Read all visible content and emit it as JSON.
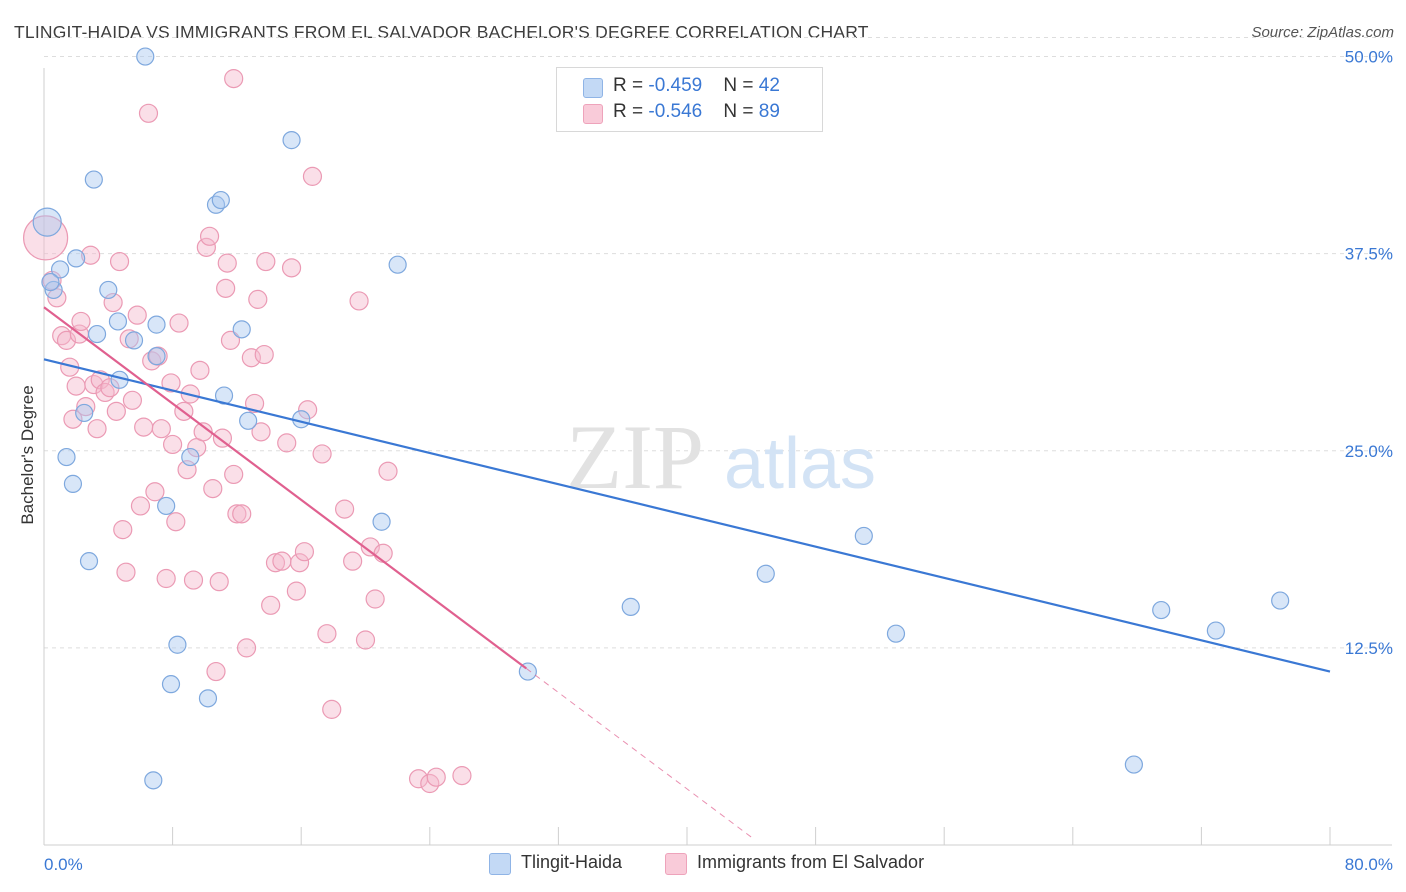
{
  "title": "TLINGIT-HAIDA VS IMMIGRANTS FROM EL SALVADOR BACHELOR'S DEGREE CORRELATION CHART",
  "source": "Source: ZipAtlas.com",
  "watermark": {
    "zip": "ZIP",
    "atlas": "atlas"
  },
  "legend": {
    "rows": [
      {
        "r_label": "R = ",
        "r_value": "-0.459",
        "n_label": "N = ",
        "n_value": "42",
        "color": "#a8c8f0"
      },
      {
        "r_label": "R = ",
        "r_value": "-0.546",
        "n_label": "N = ",
        "n_value": "89",
        "color": "#f5b8cb"
      }
    ]
  },
  "bottom_legend": {
    "items": [
      {
        "label": "Tlingit-Haida",
        "color": "#a8c8f0"
      },
      {
        "label": "Immigrants from El Salvador",
        "color": "#f5b8cb"
      }
    ]
  },
  "chart_data": {
    "type": "scatter",
    "xlabel": "",
    "ylabel": "Bachelor's Degree",
    "xlim": [
      0,
      80
    ],
    "ylim": [
      0,
      52
    ],
    "x_tick_labels": [
      {
        "value": 0,
        "label": "0.0%"
      },
      {
        "value": 80,
        "label": "80.0%"
      }
    ],
    "y_tick_labels": [
      {
        "value": 12.5,
        "label": "12.5%"
      },
      {
        "value": 25,
        "label": "25.0%"
      },
      {
        "value": 37.5,
        "label": "37.5%"
      },
      {
        "value": 50,
        "label": "50.0%"
      }
    ],
    "grid": "horizontal dashed",
    "colors": {
      "blue": "#3a78d4",
      "pink": "#e0608f",
      "blue_fill": "#a8c8f0",
      "pink_fill": "#f5b8cb"
    },
    "series": [
      {
        "name": "Tlingit-Haida",
        "trend": {
          "x0": 0,
          "y0": 30.8,
          "x1": 80,
          "y1": 11.0
        },
        "points": [
          [
            0.2,
            39.5
          ],
          [
            0.6,
            35.2
          ],
          [
            1.0,
            36.5
          ],
          [
            1.4,
            24.6
          ],
          [
            1.8,
            22.9
          ],
          [
            2.5,
            27.4
          ],
          [
            2.8,
            18.0
          ],
          [
            3.1,
            42.2
          ],
          [
            3.3,
            32.4
          ],
          [
            4.0,
            35.2
          ],
          [
            4.6,
            33.2
          ],
          [
            4.7,
            29.5
          ],
          [
            5.6,
            32.0
          ],
          [
            6.3,
            50.0
          ],
          [
            7.0,
            31.0
          ],
          [
            7.0,
            33.0
          ],
          [
            7.6,
            21.5
          ],
          [
            7.9,
            10.2
          ],
          [
            8.3,
            12.7
          ],
          [
            9.1,
            24.6
          ],
          [
            10.2,
            9.3
          ],
          [
            10.7,
            40.6
          ],
          [
            11.0,
            40.9
          ],
          [
            11.2,
            28.5
          ],
          [
            12.3,
            32.7
          ],
          [
            12.7,
            26.9
          ],
          [
            15.4,
            44.7
          ],
          [
            16.0,
            27.0
          ],
          [
            21.0,
            20.5
          ],
          [
            22.0,
            36.8
          ],
          [
            30.1,
            11.0
          ],
          [
            36.5,
            15.1
          ],
          [
            44.9,
            17.2
          ],
          [
            51.0,
            19.6
          ],
          [
            53.0,
            13.4
          ],
          [
            67.8,
            5.1
          ],
          [
            69.5,
            14.9
          ],
          [
            72.9,
            13.6
          ],
          [
            76.9,
            15.5
          ],
          [
            0.4,
            35.7
          ],
          [
            6.8,
            4.1
          ],
          [
            2.0,
            37.2
          ]
        ]
      },
      {
        "name": "Immigrants from El Salvador",
        "trend": {
          "x0": 0,
          "y0": 34.1,
          "x1": 30.0,
          "y1": 11.2,
          "dash_x1": 44.0,
          "dash_y1": 0.5
        },
        "points": [
          [
            0.1,
            38.5
          ],
          [
            0.5,
            35.8
          ],
          [
            0.8,
            34.7
          ],
          [
            1.1,
            32.3
          ],
          [
            1.4,
            32.0
          ],
          [
            1.6,
            30.3
          ],
          [
            1.8,
            27.0
          ],
          [
            2.0,
            29.1
          ],
          [
            2.2,
            32.4
          ],
          [
            2.3,
            33.2
          ],
          [
            2.6,
            27.8
          ],
          [
            2.9,
            37.4
          ],
          [
            3.1,
            29.2
          ],
          [
            3.3,
            26.4
          ],
          [
            3.5,
            29.5
          ],
          [
            3.8,
            28.7
          ],
          [
            4.1,
            29.0
          ],
          [
            4.3,
            34.4
          ],
          [
            4.5,
            27.5
          ],
          [
            4.7,
            37.0
          ],
          [
            4.9,
            20.0
          ],
          [
            5.1,
            17.3
          ],
          [
            5.3,
            32.1
          ],
          [
            5.5,
            28.2
          ],
          [
            5.8,
            33.6
          ],
          [
            6.0,
            21.5
          ],
          [
            6.2,
            26.5
          ],
          [
            6.5,
            46.4
          ],
          [
            6.7,
            30.7
          ],
          [
            6.9,
            22.4
          ],
          [
            7.1,
            31.0
          ],
          [
            7.3,
            26.4
          ],
          [
            7.6,
            16.9
          ],
          [
            7.9,
            29.3
          ],
          [
            8.0,
            25.4
          ],
          [
            8.2,
            20.5
          ],
          [
            8.4,
            33.1
          ],
          [
            8.7,
            27.5
          ],
          [
            8.9,
            23.8
          ],
          [
            9.1,
            28.6
          ],
          [
            9.3,
            16.8
          ],
          [
            9.5,
            25.2
          ],
          [
            9.7,
            30.1
          ],
          [
            9.9,
            26.2
          ],
          [
            10.1,
            37.9
          ],
          [
            10.3,
            38.6
          ],
          [
            10.5,
            22.6
          ],
          [
            10.7,
            11.0
          ],
          [
            10.9,
            16.7
          ],
          [
            11.1,
            25.8
          ],
          [
            11.4,
            36.9
          ],
          [
            11.6,
            32.0
          ],
          [
            11.8,
            23.5
          ],
          [
            12.0,
            21.0
          ],
          [
            12.3,
            21.0
          ],
          [
            12.6,
            12.5
          ],
          [
            12.9,
            30.9
          ],
          [
            13.1,
            28.0
          ],
          [
            13.3,
            34.6
          ],
          [
            13.5,
            26.2
          ],
          [
            13.7,
            31.1
          ],
          [
            13.8,
            37.0
          ],
          [
            14.1,
            15.2
          ],
          [
            14.4,
            17.9
          ],
          [
            14.8,
            18.0
          ],
          [
            15.1,
            25.5
          ],
          [
            15.4,
            36.6
          ],
          [
            15.7,
            16.1
          ],
          [
            15.9,
            17.9
          ],
          [
            16.2,
            18.6
          ],
          [
            16.4,
            27.6
          ],
          [
            16.7,
            42.4
          ],
          [
            17.3,
            24.8
          ],
          [
            17.6,
            13.4
          ],
          [
            17.9,
            8.6
          ],
          [
            18.7,
            21.3
          ],
          [
            19.2,
            18.0
          ],
          [
            19.6,
            34.5
          ],
          [
            20.0,
            13.0
          ],
          [
            20.3,
            18.9
          ],
          [
            20.6,
            15.6
          ],
          [
            21.1,
            18.5
          ],
          [
            21.4,
            23.7
          ],
          [
            23.3,
            4.2
          ],
          [
            24.0,
            3.9
          ],
          [
            24.4,
            4.3
          ],
          [
            11.8,
            48.6
          ],
          [
            26.0,
            4.4
          ],
          [
            11.3,
            35.3
          ]
        ]
      }
    ]
  }
}
